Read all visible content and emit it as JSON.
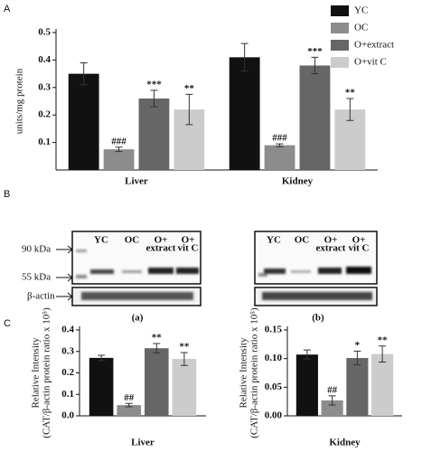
{
  "panel_labels": [
    "A",
    "B",
    "C"
  ],
  "blot": {
    "markers": [
      "90 kDa",
      "55 kDa"
    ],
    "loading": "β-actin",
    "lanes": [
      [
        "YC"
      ],
      [
        "OC"
      ],
      [
        "O+",
        "extract"
      ],
      [
        "O+",
        "vit C"
      ]
    ],
    "captions": [
      "(a)",
      "(b)"
    ]
  },
  "chart_data": [
    {
      "type": "bar",
      "y_label": [
        "units/mg protein"
      ],
      "categories": [
        "Liver",
        "Kidney"
      ],
      "ylim": [
        0,
        0.5
      ],
      "yticks": [
        0.1,
        0.2,
        0.3,
        0.4,
        0.5
      ],
      "legend": "top-right",
      "series": [
        {
          "name": "YC",
          "color": "#111111",
          "values": [
            0.35,
            0.41
          ],
          "errors": [
            0.04,
            0.05
          ],
          "significance": [
            null,
            null
          ]
        },
        {
          "name": "OC",
          "color": "#8c8c8c",
          "values": [
            0.075,
            0.09
          ],
          "errors": [
            0.008,
            0.005
          ],
          "significance": [
            "###",
            "###"
          ]
        },
        {
          "name": "O+extract",
          "color": "#666666",
          "values": [
            0.26,
            0.38
          ],
          "errors": [
            0.03,
            0.03
          ],
          "significance": [
            "***",
            "***"
          ]
        },
        {
          "name": "O+vit C",
          "color": "#cccccc",
          "values": [
            0.22,
            0.22
          ],
          "errors": [
            0.055,
            0.04
          ],
          "significance": [
            "**",
            "**"
          ]
        }
      ]
    },
    {
      "type": "bar",
      "y_label": [
        "Relative Intensity",
        "(CAT/β-actin protein ratio x 10⁵)"
      ],
      "categories": [
        "Liver"
      ],
      "ylim": [
        0,
        0.4
      ],
      "yticks": [
        {
          "value": 0,
          "label": "0.0"
        },
        0.1,
        0.2,
        0.3,
        0.4
      ],
      "series": [
        {
          "color": "#111111",
          "values": [
            0.27
          ],
          "errors": [
            0.012
          ],
          "significance": [
            null
          ]
        },
        {
          "color": "#8c8c8c",
          "values": [
            0.05
          ],
          "errors": [
            0.008
          ],
          "significance": [
            "##"
          ]
        },
        {
          "color": "#666666",
          "values": [
            0.315
          ],
          "errors": [
            0.022
          ],
          "significance": [
            "**"
          ]
        },
        {
          "color": "#cccccc",
          "values": [
            0.265
          ],
          "errors": [
            0.03
          ],
          "significance": [
            "**"
          ]
        }
      ]
    },
    {
      "type": "bar",
      "y_label": [
        "Relative Intensity",
        "(CAT/β-actin protein ratio x 10⁵)"
      ],
      "categories": [
        "Kidney"
      ],
      "ylim": [
        0,
        0.15
      ],
      "yticks": [
        {
          "value": 0,
          "label": "0.00"
        },
        {
          "value": 0.05,
          "label": "0.05"
        },
        {
          "value": 0.1,
          "label": "0.10"
        },
        {
          "value": 0.15,
          "label": "0.15"
        }
      ],
      "series": [
        {
          "color": "#111111",
          "values": [
            0.107
          ],
          "errors": [
            0.008
          ],
          "significance": [
            null
          ]
        },
        {
          "color": "#8c8c8c",
          "values": [
            0.027
          ],
          "errors": [
            0.008
          ],
          "significance": [
            "##"
          ]
        },
        {
          "color": "#666666",
          "values": [
            0.101
          ],
          "errors": [
            0.012
          ],
          "significance": [
            "*"
          ]
        },
        {
          "color": "#cccccc",
          "values": [
            0.108
          ],
          "errors": [
            0.014
          ],
          "significance": [
            "**"
          ]
        }
      ]
    }
  ]
}
